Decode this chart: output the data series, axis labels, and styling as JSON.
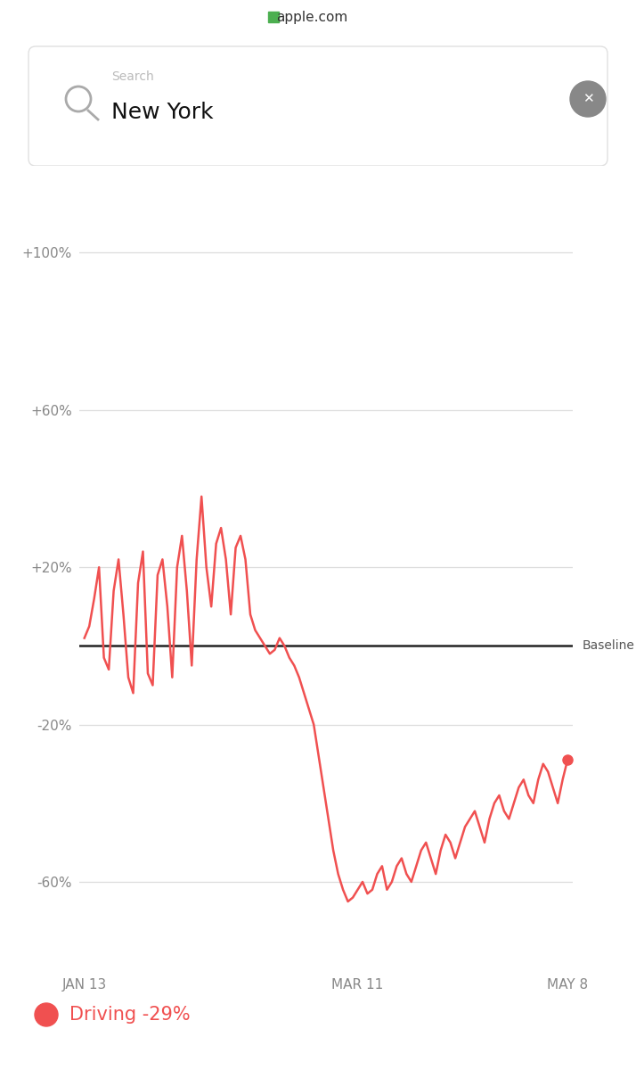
{
  "title": "New York",
  "search_placeholder": "Search",
  "browser_url": "apple.com",
  "legend_label": "Driving -29%",
  "legend_color": "#f05050",
  "baseline_label": "Baseline",
  "yticks": [
    -60,
    -20,
    20,
    60,
    100
  ],
  "ytick_labels": [
    "-60%",
    "-20%",
    "+20%",
    "+60%",
    "+100%"
  ],
  "xtick_labels": [
    "JAN 13",
    "MAR 11",
    "MAY 8"
  ],
  "line_color": "#f05050",
  "baseline_color": "#222222",
  "grid_color": "#dddddd",
  "bg_color": "#ffffff",
  "browser_bar_color": "#f2f2f2",
  "browser_separator_color": "#c8c8c8",
  "driving_data": [
    2,
    5,
    12,
    20,
    -3,
    -6,
    14,
    22,
    8,
    -8,
    -12,
    16,
    24,
    -7,
    -10,
    18,
    22,
    10,
    -8,
    20,
    28,
    14,
    -5,
    22,
    38,
    20,
    10,
    26,
    30,
    22,
    8,
    25,
    28,
    22,
    8,
    4,
    2,
    0,
    -2,
    -1,
    2,
    0,
    -3,
    -5,
    -8,
    -12,
    -16,
    -20,
    -28,
    -36,
    -44,
    -52,
    -58,
    -62,
    -65,
    -64,
    -62,
    -60,
    -63,
    -62,
    -58,
    -56,
    -62,
    -60,
    -56,
    -54,
    -58,
    -60,
    -56,
    -52,
    -50,
    -54,
    -58,
    -52,
    -48,
    -50,
    -54,
    -50,
    -46,
    -44,
    -42,
    -46,
    -50,
    -44,
    -40,
    -38,
    -42,
    -44,
    -40,
    -36,
    -34,
    -38,
    -40,
    -34,
    -30,
    -32,
    -36,
    -40,
    -34,
    -29
  ]
}
